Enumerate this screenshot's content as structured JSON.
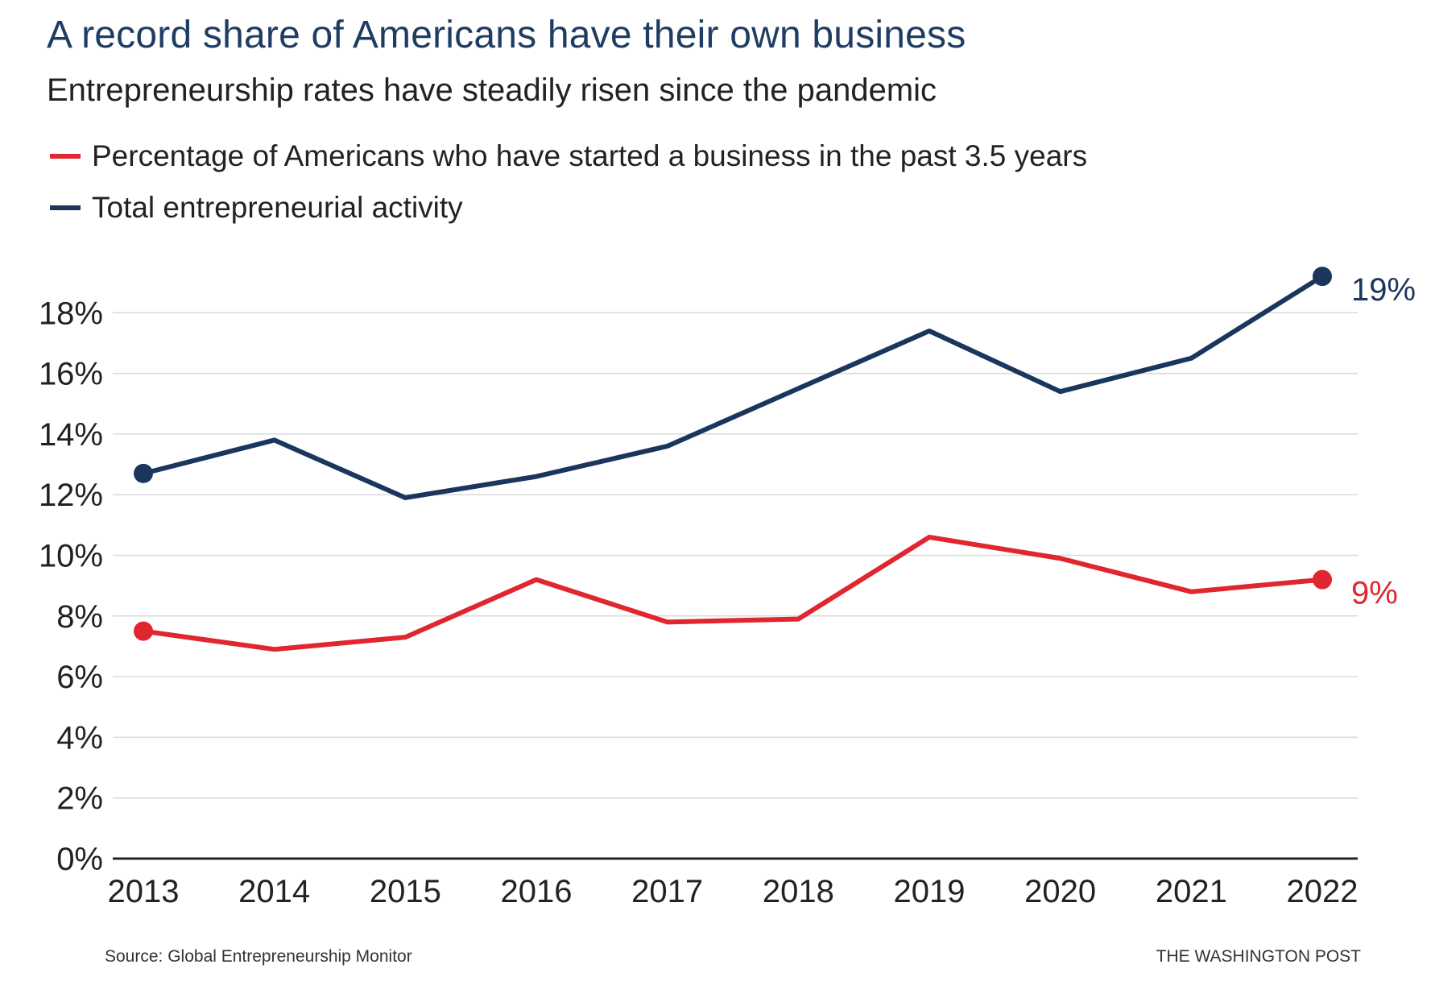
{
  "chart_data": {
    "type": "line",
    "title": "A record share of Americans have their own business",
    "subtitle": "Entrepreneurship rates have steadily risen since the pandemic",
    "x": [
      "2013",
      "2014",
      "2015",
      "2016",
      "2017",
      "2018",
      "2019",
      "2020",
      "2021",
      "2022"
    ],
    "y_ticks": [
      "0%",
      "2%",
      "4%",
      "6%",
      "8%",
      "10%",
      "12%",
      "14%",
      "16%",
      "18%"
    ],
    "ylim": [
      0,
      20
    ],
    "ylabel": "",
    "xlabel": "",
    "grid": true,
    "legend_position": "top-left",
    "series": [
      {
        "name": "Percentage of Americans who have started a business in the past 3.5 years",
        "color": "#e0262f",
        "values": [
          7.5,
          6.9,
          7.3,
          9.2,
          7.8,
          7.9,
          10.6,
          9.9,
          8.8,
          9.2
        ],
        "end_label": "9%"
      },
      {
        "name": "Total entrepreneurial activity",
        "color": "#1b365d",
        "values": [
          12.7,
          13.8,
          11.9,
          12.6,
          13.6,
          15.5,
          17.4,
          15.4,
          16.5,
          19.2
        ],
        "end_label": "19%"
      }
    ]
  },
  "footer": {
    "source": "Source: Global Entrepreneurship Monitor",
    "credit": "THE WASHINGTON POST"
  }
}
